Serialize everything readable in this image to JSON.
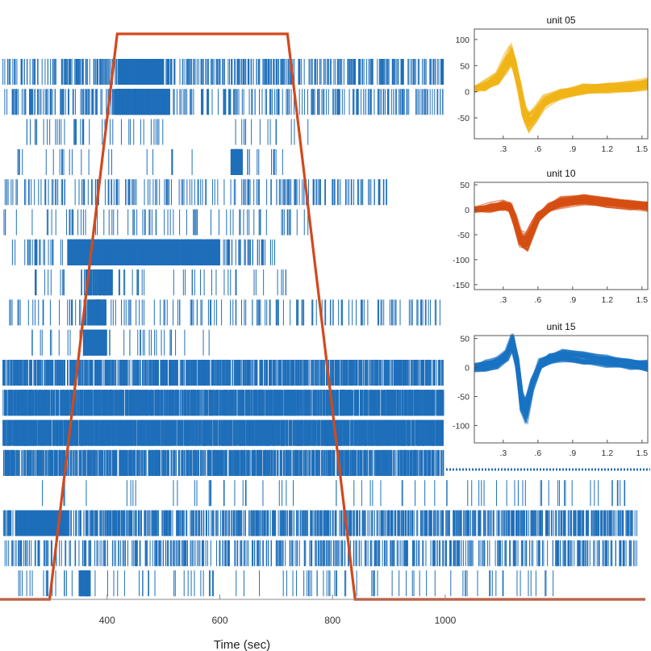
{
  "chart_data": [
    {
      "type": "raster",
      "xlabel": "Time (sec)",
      "x_ticks": [
        400,
        600,
        800,
        1000
      ],
      "xlim": [
        210,
        1355
      ],
      "colors": {
        "spikes": "#1f6fba",
        "stimulus": "#d2491c",
        "axis": "#888888"
      },
      "stimulus_trace": {
        "x": [
          210,
          298,
          418,
          720,
          840,
          1355
        ],
        "y": [
          0,
          0,
          1,
          1,
          0,
          0
        ]
      },
      "spike_rows": [
        {
          "unit": 1,
          "intervals": [
            [
              215,
              1050
            ]
          ],
          "bursts": [
            [
              420,
              500
            ]
          ],
          "density": 0.55
        },
        {
          "unit": 2,
          "intervals": [
            [
              215,
              1050
            ]
          ],
          "bursts": [
            [
              415,
              510
            ]
          ],
          "density": 0.45
        },
        {
          "unit": 3,
          "intervals": [
            [
              240,
              500
            ],
            [
              620,
              760
            ]
          ],
          "bursts": [],
          "density": 0.12
        },
        {
          "unit": 4,
          "intervals": [
            [
              240,
              560
            ],
            [
              640,
              720
            ]
          ],
          "bursts": [
            [
              620,
              640
            ]
          ],
          "density": 0.08
        },
        {
          "unit": 5,
          "intervals": [
            [
              215,
              900
            ]
          ],
          "bursts": [],
          "density": 0.3
        },
        {
          "unit": 6,
          "intervals": [
            [
              215,
              760
            ]
          ],
          "bursts": [],
          "density": 0.14
        },
        {
          "unit": 7,
          "intervals": [
            [
              230,
              700
            ]
          ],
          "bursts": [
            [
              330,
              600
            ]
          ],
          "density": 0.3
        },
        {
          "unit": 8,
          "intervals": [
            [
              250,
              720
            ]
          ],
          "bursts": [
            [
              362,
              410
            ]
          ],
          "density": 0.12
        },
        {
          "unit": 9,
          "intervals": [
            [
              215,
              1050
            ]
          ],
          "bursts": [
            [
              360,
              400
            ]
          ],
          "density": 0.2
        },
        {
          "unit": 10,
          "intervals": [
            [
              240,
              600
            ]
          ],
          "bursts": [
            [
              358,
              400
            ]
          ],
          "density": 0.14
        },
        {
          "unit": 11,
          "intervals": [
            [
              215,
              1050
            ]
          ],
          "bursts": [],
          "density": 1.4
        },
        {
          "unit": 12,
          "intervals": [
            [
              215,
              1050
            ]
          ],
          "bursts": [],
          "density": 2.4
        },
        {
          "unit": 13,
          "intervals": [
            [
              215,
              1050
            ]
          ],
          "bursts": [],
          "density": 3.0
        },
        {
          "unit": 14,
          "intervals": [
            [
              215,
              1050
            ]
          ],
          "bursts": [],
          "density": 1.5
        },
        {
          "unit": 15,
          "intervals": [
            [
              270,
              1340
            ]
          ],
          "bursts": [],
          "density": 0.05
        },
        {
          "unit": 16,
          "intervals": [
            [
              215,
              1340
            ]
          ],
          "bursts": [
            [
              240,
              330
            ]
          ],
          "density": 0.9
        },
        {
          "unit": 17,
          "intervals": [
            [
              215,
              1340
            ]
          ],
          "bursts": [],
          "density": 0.5
        },
        {
          "unit": 18,
          "intervals": [
            [
              240,
              1200
            ]
          ],
          "bursts": [
            [
              350,
              370
            ]
          ],
          "density": 0.1
        }
      ]
    },
    {
      "type": "line",
      "title": "unit 05",
      "color": "#f0b418",
      "xlim": [
        0.05,
        1.55
      ],
      "ylim": [
        -90,
        120
      ],
      "x_ticks": [
        0.3,
        0.6,
        0.9,
        1.2,
        1.5
      ],
      "x_tick_labels": [
        ".3",
        ".6",
        ".9",
        "1.2",
        "1.5"
      ],
      "y_ticks": [
        100,
        50,
        0,
        -50
      ],
      "template": {
        "x": [
          0.05,
          0.15,
          0.25,
          0.33,
          0.37,
          0.4,
          0.44,
          0.48,
          0.52,
          0.58,
          0.66,
          0.8,
          1.0,
          1.2,
          1.4,
          1.55
        ],
        "y": [
          5,
          12,
          25,
          55,
          70,
          50,
          10,
          -40,
          -60,
          -45,
          -20,
          -5,
          5,
          8,
          10,
          15
        ]
      }
    },
    {
      "type": "line",
      "title": "unit 10",
      "color": "#d64e12",
      "xlim": [
        0.05,
        1.55
      ],
      "ylim": [
        -160,
        55
      ],
      "x_ticks": [
        0.3,
        0.6,
        0.9,
        1.2,
        1.5
      ],
      "x_tick_labels": [
        ".3",
        ".6",
        ".9",
        "1.2",
        "1.5"
      ],
      "y_ticks": [
        50,
        0,
        -50,
        -100,
        -150
      ],
      "template": {
        "x": [
          0.05,
          0.2,
          0.3,
          0.36,
          0.4,
          0.45,
          0.5,
          0.55,
          0.6,
          0.7,
          0.8,
          1.0,
          1.2,
          1.4,
          1.55
        ],
        "y": [
          0,
          5,
          8,
          5,
          -20,
          -60,
          -65,
          -40,
          -15,
          5,
          15,
          20,
          15,
          10,
          8
        ]
      }
    },
    {
      "type": "line",
      "title": "unit 15",
      "color": "#1a72c2",
      "xlim": [
        0.05,
        1.55
      ],
      "ylim": [
        -130,
        55
      ],
      "x_ticks": [
        0.3,
        0.6,
        0.9,
        1.2,
        1.5
      ],
      "x_tick_labels": [
        ".3",
        ".6",
        ".9",
        "1.2",
        "1.5"
      ],
      "y_ticks": [
        50,
        0,
        -50,
        -100
      ],
      "template": {
        "x": [
          0.05,
          0.15,
          0.25,
          0.33,
          0.38,
          0.42,
          0.46,
          0.5,
          0.55,
          0.62,
          0.7,
          0.82,
          1.0,
          1.2,
          1.4,
          1.55
        ],
        "y": [
          0,
          2,
          8,
          20,
          45,
          10,
          -60,
          -75,
          -30,
          5,
          15,
          20,
          15,
          10,
          5,
          2
        ]
      }
    }
  ]
}
